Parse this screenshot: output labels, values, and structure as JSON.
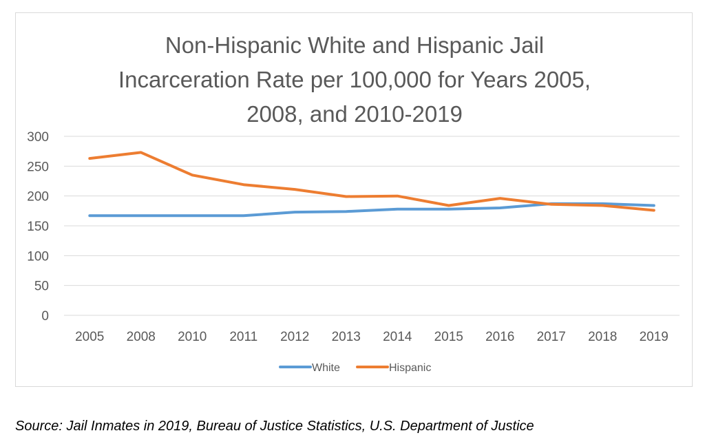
{
  "chart_data": {
    "type": "line",
    "title_lines": [
      "Non-Hispanic White and Hispanic Jail",
      "Incarceration Rate per 100,000 for Years 2005,",
      "2008, and 2010-2019"
    ],
    "categories": [
      "2005",
      "2008",
      "2010",
      "2011",
      "2012",
      "2013",
      "2014",
      "2015",
      "2016",
      "2017",
      "2018",
      "2019"
    ],
    "series": [
      {
        "name": "White",
        "color": "#5B9BD5",
        "values": [
          167,
          167,
          167,
          167,
          173,
          174,
          178,
          178,
          180,
          187,
          187,
          184
        ]
      },
      {
        "name": "Hispanic",
        "color": "#ED7D31",
        "values": [
          263,
          273,
          235,
          219,
          211,
          199,
          200,
          184,
          196,
          186,
          184,
          176
        ]
      }
    ],
    "yticks": [
      0,
      50,
      100,
      150,
      200,
      250,
      300
    ],
    "ylim": [
      0,
      300
    ],
    "grid": true,
    "legend_position": "bottom"
  },
  "source": "Source: Jail Inmates in 2019, Bureau of Justice Statistics, U.S. Department of Justice"
}
